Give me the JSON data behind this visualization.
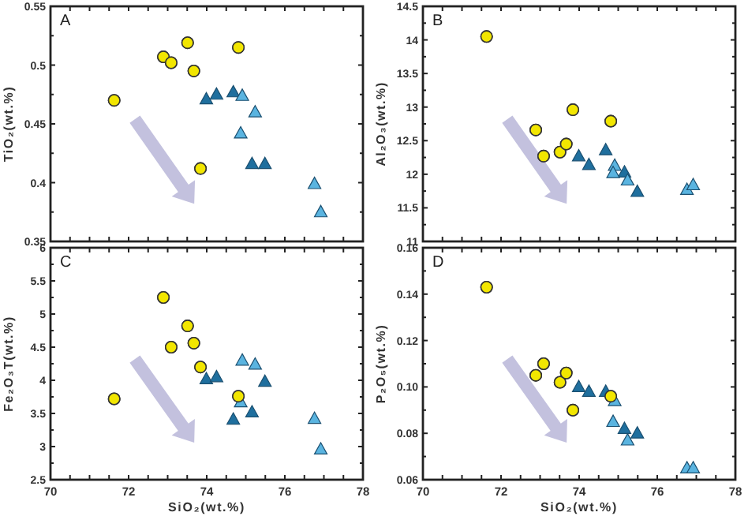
{
  "chart_data": [
    {
      "type": "scatter",
      "title": "A",
      "ylabel": "TiO₂(wt.%)",
      "xlim": [
        70,
        78
      ],
      "xticks": [
        70,
        {
          "value": 70.5,
          "label": null
        },
        {
          "value": 71,
          "label": null
        },
        {
          "value": 71.5,
          "label": null
        },
        {
          "value": 72,
          "label": null
        },
        {
          "value": 72.5,
          "label": null
        },
        {
          "value": 73,
          "label": null
        },
        {
          "value": 73.5,
          "label": null
        },
        {
          "value": 74,
          "label": null
        },
        {
          "value": 74.5,
          "label": null
        },
        {
          "value": 75,
          "label": null
        },
        {
          "value": 75.5,
          "label": null
        },
        {
          "value": 76,
          "label": null
        },
        {
          "value": 76.5,
          "label": null
        },
        {
          "value": 77,
          "label": null
        },
        {
          "value": 77.5,
          "label": null
        },
        78
      ],
      "ylim": [
        0.35,
        0.55
      ],
      "yticks": [
        0.35,
        0.4,
        0.45,
        0.5,
        0.55
      ],
      "tick_labels": "y",
      "grid": false,
      "series": [
        {
          "color": "#f2e600",
          "marker": "circle",
          "x": [
            71.63,
            72.89,
            73.09,
            73.51,
            73.67,
            73.84,
            74.81
          ],
          "values": [
            0.47,
            0.507,
            0.502,
            0.519,
            0.495,
            0.412,
            0.515
          ]
        },
        {
          "color": "#1f6f9e",
          "marker": "triangle",
          "x": [
            73.99,
            74.25,
            74.68,
            75.16,
            75.49
          ],
          "values": [
            0.471,
            0.475,
            0.477,
            0.416,
            0.416
          ]
        },
        {
          "color": "#5ab4e0",
          "marker": "triangle",
          "x": [
            74.91,
            75.24,
            74.87,
            76.76,
            76.92
          ],
          "values": [
            0.474,
            0.46,
            0.442,
            0.399,
            0.375
          ]
        }
      ]
    },
    {
      "type": "scatter",
      "title": "B",
      "ylabel": "Al₂O₃(wt.%)",
      "xlim": [
        70,
        78
      ],
      "xticks": [
        70,
        {
          "value": 70.5,
          "label": null
        },
        {
          "value": 71,
          "label": null
        },
        {
          "value": 71.5,
          "label": null
        },
        {
          "value": 72,
          "label": null
        },
        {
          "value": 72.5,
          "label": null
        },
        {
          "value": 73,
          "label": null
        },
        {
          "value": 73.5,
          "label": null
        },
        {
          "value": 74,
          "label": null
        },
        {
          "value": 74.5,
          "label": null
        },
        {
          "value": 75,
          "label": null
        },
        {
          "value": 75.5,
          "label": null
        },
        {
          "value": 76,
          "label": null
        },
        {
          "value": 76.5,
          "label": null
        },
        {
          "value": 77,
          "label": null
        },
        {
          "value": 77.5,
          "label": null
        },
        78
      ],
      "ylim": [
        11,
        14.5
      ],
      "yticks": [
        11,
        11.5,
        12,
        12.5,
        13,
        13.5,
        14,
        14.5
      ],
      "tick_labels": "y",
      "grid": false,
      "series": [
        {
          "color": "#f2e600",
          "marker": "circle",
          "x": [
            71.63,
            72.89,
            73.09,
            73.51,
            73.67,
            73.84,
            74.81
          ],
          "values": [
            14.05,
            12.66,
            12.27,
            12.33,
            12.45,
            12.96,
            12.79
          ]
        },
        {
          "color": "#1f6f9e",
          "marker": "triangle",
          "x": [
            73.99,
            74.25,
            74.68,
            75.16,
            75.49
          ],
          "values": [
            12.27,
            12.14,
            12.36,
            12.03,
            11.74
          ]
        },
        {
          "color": "#5ab4e0",
          "marker": "triangle",
          "x": [
            74.91,
            75.24,
            74.87,
            76.76,
            76.92
          ],
          "values": [
            12.13,
            11.91,
            12.02,
            11.77,
            11.84
          ]
        }
      ]
    },
    {
      "type": "scatter",
      "title": "C",
      "xlabel": "SiO₂(wt.%)",
      "ylabel": "Fe₂O₃T(wt.%)",
      "xlim": [
        70,
        78
      ],
      "xticks": [
        70,
        {
          "value": 70.5,
          "label": null
        },
        {
          "value": 71,
          "label": null
        },
        {
          "value": 71.5,
          "label": null
        },
        72,
        {
          "value": 72.5,
          "label": null
        },
        {
          "value": 73,
          "label": null
        },
        {
          "value": 73.5,
          "label": null
        },
        74,
        {
          "value": 74.5,
          "label": null
        },
        {
          "value": 75,
          "label": null
        },
        {
          "value": 75.5,
          "label": null
        },
        76,
        {
          "value": 76.5,
          "label": null
        },
        {
          "value": 77,
          "label": null
        },
        {
          "value": 77.5,
          "label": null
        },
        78
      ],
      "ylim": [
        2.5,
        6
      ],
      "yticks": [
        2.5,
        3,
        3.5,
        4,
        4.5,
        5,
        5.5,
        6
      ],
      "grid": false,
      "series": [
        {
          "color": "#f2e600",
          "marker": "circle",
          "x": [
            71.63,
            72.89,
            73.09,
            73.51,
            73.67,
            73.84,
            74.81
          ],
          "values": [
            3.72,
            5.25,
            4.5,
            4.82,
            4.56,
            4.2,
            3.76
          ]
        },
        {
          "color": "#1f6f9e",
          "marker": "triangle",
          "x": [
            73.99,
            74.25,
            74.68,
            75.16,
            75.49
          ],
          "values": [
            4.02,
            4.05,
            3.41,
            3.52,
            3.98
          ]
        },
        {
          "color": "#5ab4e0",
          "marker": "triangle",
          "x": [
            74.91,
            75.24,
            74.87,
            76.76,
            76.92
          ],
          "values": [
            4.3,
            4.24,
            3.67,
            3.42,
            2.96
          ]
        }
      ]
    },
    {
      "type": "scatter",
      "title": "D",
      "xlabel": "SiO₂(wt.%)",
      "ylabel": "P₂O₅(wt.%)",
      "xlim": [
        70,
        78
      ],
      "xticks": [
        70,
        {
          "value": 70.5,
          "label": null
        },
        {
          "value": 71,
          "label": null
        },
        {
          "value": 71.5,
          "label": null
        },
        72,
        {
          "value": 72.5,
          "label": null
        },
        {
          "value": 73,
          "label": null
        },
        {
          "value": 73.5,
          "label": null
        },
        74,
        {
          "value": 74.5,
          "label": null
        },
        {
          "value": 75,
          "label": null
        },
        {
          "value": 75.5,
          "label": null
        },
        76,
        {
          "value": 76.5,
          "label": null
        },
        {
          "value": 77,
          "label": null
        },
        {
          "value": 77.5,
          "label": null
        },
        78
      ],
      "ylim": [
        0.06,
        0.16
      ],
      "yticks": [
        {
          "value": 0.06,
          "label": "0.06"
        },
        {
          "value": 0.08,
          "label": "0.08"
        },
        {
          "value": 0.1,
          "label": "0.10"
        },
        {
          "value": 0.12,
          "label": "0.12"
        },
        {
          "value": 0.14,
          "label": "0.14"
        },
        {
          "value": 0.16,
          "label": "0.16"
        }
      ],
      "grid": false,
      "series": [
        {
          "color": "#f2e600",
          "marker": "circle",
          "x": [
            71.63,
            72.89,
            73.09,
            73.51,
            73.67,
            73.84,
            74.81
          ],
          "values": [
            0.143,
            0.105,
            0.11,
            0.102,
            0.106,
            0.09,
            0.096
          ]
        },
        {
          "color": "#1f6f9e",
          "marker": "triangle",
          "x": [
            73.99,
            74.25,
            74.68,
            75.16,
            75.49
          ],
          "values": [
            0.1,
            0.098,
            0.098,
            0.082,
            0.08
          ]
        },
        {
          "color": "#5ab4e0",
          "marker": "triangle",
          "x": [
            74.91,
            75.24,
            74.87,
            76.76,
            76.92
          ],
          "values": [
            0.094,
            0.077,
            0.085,
            0.065,
            0.065
          ]
        }
      ]
    }
  ]
}
